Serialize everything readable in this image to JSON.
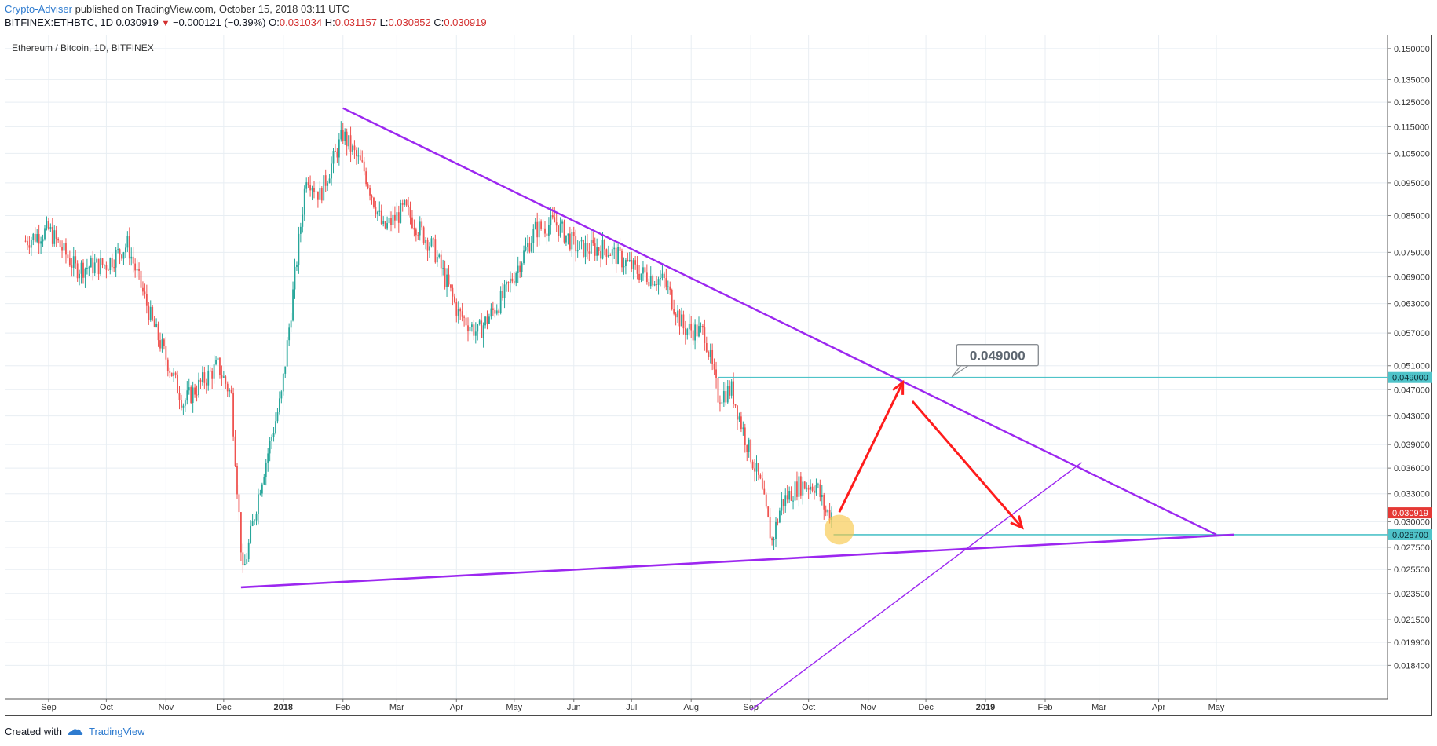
{
  "header": {
    "author": "Crypto-Adviser",
    "published": "published on TradingView.com, October 15, 2018 03:11 UTC",
    "symbol": "BITFINEX:ETHBTC, 1D",
    "last": "0.030919",
    "change": "−0.000121 (−0.39%)",
    "o_label": "O:",
    "o": "0.031034",
    "h_label": "H:",
    "h": "0.031157",
    "l_label": "L:",
    "l": "0.030852",
    "c_label": "C:",
    "c": "0.030919"
  },
  "footer": {
    "created_with": "Created with",
    "brand": "TradingView"
  },
  "chart_data": {
    "type": "candlestick",
    "title": "Ethereum / Bitcoin, 1D, BITFINEX",
    "scale": "log",
    "y_ticks": [
      "0.150000",
      "0.135000",
      "0.125000",
      "0.115000",
      "0.105000",
      "0.095000",
      "0.085000",
      "0.075000",
      "0.069000",
      "0.063000",
      "0.057000",
      "0.051000",
      "0.047000",
      "0.043000",
      "0.039000",
      "0.036000",
      "0.033000",
      "0.030000",
      "0.027500",
      "0.025500",
      "0.023500",
      "0.021500",
      "0.019900",
      "0.018400"
    ],
    "x_ticks": [
      "Sep",
      "Oct",
      "Nov",
      "Dec",
      "2018",
      "Feb",
      "Mar",
      "Apr",
      "May",
      "Jun",
      "Jul",
      "Aug",
      "Sep",
      "Oct",
      "Nov",
      "Dec",
      "2019",
      "Feb",
      "Mar",
      "Apr",
      "May"
    ],
    "bold_x_ticks": [
      "2018",
      "2019"
    ],
    "price_labels": [
      {
        "value": "0.049000",
        "color": "#4fc3c9"
      },
      {
        "value": "0.030919",
        "color": "#e53935"
      },
      {
        "value": "0.028700",
        "color": "#4fc3c9"
      }
    ],
    "callout": "0.049000",
    "key_points": [
      {
        "date": "2017-08-20",
        "price": 0.078
      },
      {
        "date": "2017-09-01",
        "price": 0.081
      },
      {
        "date": "2017-09-15",
        "price": 0.071
      },
      {
        "date": "2017-10-01",
        "price": 0.072
      },
      {
        "date": "2017-10-12",
        "price": 0.077
      },
      {
        "date": "2017-10-25",
        "price": 0.059
      },
      {
        "date": "2017-11-10",
        "price": 0.045
      },
      {
        "date": "2017-11-22",
        "price": 0.049
      },
      {
        "date": "2017-11-28",
        "price": 0.051
      },
      {
        "date": "2017-12-05",
        "price": 0.046
      },
      {
        "date": "2017-12-11",
        "price": 0.025
      },
      {
        "date": "2017-12-20",
        "price": 0.034
      },
      {
        "date": "2017-12-31",
        "price": 0.046
      },
      {
        "date": "2018-01-13",
        "price": 0.098
      },
      {
        "date": "2018-01-20",
        "price": 0.091
      },
      {
        "date": "2018-02-01",
        "price": 0.112
      },
      {
        "date": "2018-02-12",
        "price": 0.099
      },
      {
        "date": "2018-02-22",
        "price": 0.081
      },
      {
        "date": "2018-03-05",
        "price": 0.087
      },
      {
        "date": "2018-03-20",
        "price": 0.076
      },
      {
        "date": "2018-04-02",
        "price": 0.061
      },
      {
        "date": "2018-04-12",
        "price": 0.057
      },
      {
        "date": "2018-04-26",
        "price": 0.065
      },
      {
        "date": "2018-05-12",
        "price": 0.081
      },
      {
        "date": "2018-05-22",
        "price": 0.083
      },
      {
        "date": "2018-06-03",
        "price": 0.076
      },
      {
        "date": "2018-06-18",
        "price": 0.076
      },
      {
        "date": "2018-07-05",
        "price": 0.07
      },
      {
        "date": "2018-07-18",
        "price": 0.068
      },
      {
        "date": "2018-07-28",
        "price": 0.058
      },
      {
        "date": "2018-08-08",
        "price": 0.057
      },
      {
        "date": "2018-08-15",
        "price": 0.046
      },
      {
        "date": "2018-08-22",
        "price": 0.047
      },
      {
        "date": "2018-08-29",
        "price": 0.04
      },
      {
        "date": "2018-09-06",
        "price": 0.034
      },
      {
        "date": "2018-09-12",
        "price": 0.028
      },
      {
        "date": "2018-09-17",
        "price": 0.032
      },
      {
        "date": "2018-09-26",
        "price": 0.034
      },
      {
        "date": "2018-10-05",
        "price": 0.034
      },
      {
        "date": "2018-10-10",
        "price": 0.031
      },
      {
        "date": "2018-10-14",
        "price": 0.0309
      }
    ],
    "resistance_line": {
      "from": {
        "date": "2018-02-01",
        "price": 0.1225
      },
      "to": {
        "date": "2019-05-01",
        "price": 0.0287
      }
    },
    "support_line": {
      "from": {
        "date": "2017-12-10",
        "price": 0.024
      },
      "to": {
        "date": "2019-05-10",
        "price": 0.0287
      }
    },
    "inner_support_line": {
      "from": {
        "date": "2018-09-01",
        "price": 0.0158
      },
      "to": {
        "date": "2019-02-20",
        "price": 0.0367
      }
    },
    "horizontal_levels": [
      0.049,
      0.0287
    ],
    "projected_path": [
      {
        "date": "2018-10-17",
        "price": 0.031
      },
      {
        "date": "2018-11-19",
        "price": 0.0482
      },
      {
        "date": "2019-01-20",
        "price": 0.0294
      }
    ]
  },
  "colors": {
    "up": "#26a69a",
    "down": "#ef5350",
    "trendline": "#9c27f0",
    "level": "#4fc3c9",
    "arrow": "#ff1c1c",
    "marker": "#f7c74a",
    "grid": "#e8eef3"
  }
}
